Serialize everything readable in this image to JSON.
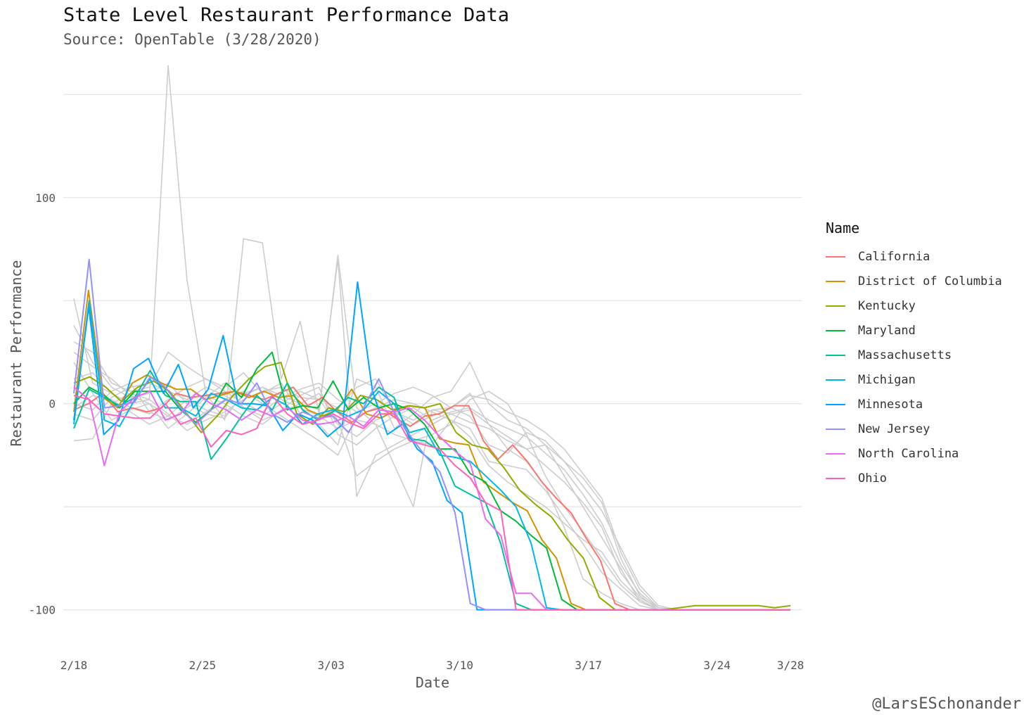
{
  "chart_data": {
    "type": "line",
    "title": "State Level Restaurant Performance Data",
    "subtitle": "Source: OpenTable (3/28/2020)",
    "xlabel": "Date",
    "ylabel": "Restaurant Performance",
    "x_start": "2/18",
    "x_end": "3/28",
    "ylim": [
      -109,
      160
    ],
    "yticks": [
      100,
      0,
      -100
    ],
    "ytick_labels": [
      "100",
      "0",
      "-100"
    ],
    "ygrid": [
      150,
      100,
      50,
      0,
      -50,
      -100
    ],
    "xticks": [
      {
        "label": "2/18",
        "day": 0
      },
      {
        "label": "2/25",
        "day": 7
      },
      {
        "label": "3/03",
        "day": 14
      },
      {
        "label": "3/10",
        "day": 21
      },
      {
        "label": "3/17",
        "day": 28
      },
      {
        "label": "3/24",
        "day": 35
      },
      {
        "label": "3/28",
        "day": 39
      }
    ],
    "legend_title": "Name",
    "series": [
      {
        "name": "California",
        "color": "#F8766D",
        "values": [
          -3,
          0,
          5,
          -4,
          -2,
          -4,
          -2,
          5,
          3,
          4,
          5,
          6,
          4,
          2,
          5,
          8,
          -1,
          3,
          -4,
          -9,
          -4,
          -2,
          -7,
          -11,
          -6,
          -5,
          -1,
          -1,
          -18,
          -27,
          -20,
          -28,
          -38,
          -46,
          -53,
          -65,
          -76,
          -97,
          -100,
          -100,
          -100,
          -100,
          -100,
          -100,
          -100,
          -100,
          -100,
          -100,
          -100,
          -100
        ]
      },
      {
        "name": "District of Columbia",
        "color": "#D39200",
        "values": [
          -4,
          55,
          3,
          -2,
          10,
          14,
          10,
          7,
          7,
          2,
          4,
          6,
          3,
          6,
          3,
          4,
          -3,
          -6,
          -3,
          7,
          -5,
          -7,
          -3,
          -1,
          -2,
          -17,
          -19,
          -20,
          -38,
          -43,
          -48,
          -52,
          -66,
          -75,
          -97,
          -100,
          -100,
          -100,
          -100,
          -100,
          -100,
          -100,
          -100,
          -100,
          -100,
          -100,
          -100,
          -100,
          -100,
          -100
        ]
      },
      {
        "name": "Kentucky",
        "color": "#93AA00",
        "values": [
          10,
          13,
          8,
          1,
          8,
          11,
          6,
          -4,
          -14,
          -6,
          4,
          12,
          18,
          20,
          -5,
          -10,
          -2,
          -4,
          4,
          2,
          -3,
          -1,
          -2,
          0,
          -14,
          -20,
          -22,
          -31,
          -42,
          -49,
          -55,
          -66,
          -75,
          -94,
          -100,
          -100,
          -100,
          -100,
          -99,
          -98,
          -98,
          -98,
          -98,
          -98,
          -99,
          -98
        ]
      },
      {
        "name": "Maryland",
        "color": "#00BA38",
        "values": [
          0,
          8,
          4,
          -2,
          6,
          6,
          6,
          -3,
          -9,
          -3,
          10,
          3,
          17,
          25,
          -3,
          -1,
          -2,
          11,
          -3,
          3,
          -2,
          0,
          -3,
          -10,
          -22,
          -22,
          -34,
          -38,
          -52,
          -57,
          -64,
          -70,
          -95,
          -100,
          -100,
          -100,
          -100,
          -100,
          -100,
          -100,
          -100,
          -100,
          -100,
          -100,
          -100,
          -100,
          -100,
          -100
        ]
      },
      {
        "name": "Massachusetts",
        "color": "#00C19F",
        "values": [
          -12,
          7,
          3,
          -1,
          3,
          16,
          4,
          1,
          1,
          -27,
          -17,
          -6,
          4,
          -3,
          10,
          -3,
          -8,
          -4,
          3,
          0,
          8,
          3,
          -17,
          -18,
          -23,
          -40,
          -44,
          -48,
          -68,
          -97,
          -100,
          -100,
          -100,
          -100,
          -100,
          -100,
          -100,
          -100,
          -100,
          -100,
          -100,
          -100,
          -100,
          -100,
          -100,
          -100,
          -100,
          -100
        ]
      },
      {
        "name": "Michigan",
        "color": "#00B9E3",
        "values": [
          -10,
          50,
          -8,
          -11,
          2,
          12,
          -2,
          -2,
          -6,
          5,
          2,
          -2,
          -3,
          3,
          -1,
          -10,
          -5,
          -3,
          -6,
          -3,
          6,
          0,
          -14,
          -12,
          -25,
          -26,
          -28,
          -35,
          -42,
          -50,
          -68,
          -99,
          -100,
          -100,
          -100,
          -100,
          -100,
          -100,
          -100,
          -100,
          -100,
          -100,
          -100,
          -100,
          -100,
          -100,
          -100,
          -100
        ]
      },
      {
        "name": "Minnesota",
        "color": "#00A5FF",
        "values": [
          -8,
          47,
          -15,
          -8,
          17,
          22,
          5,
          19,
          -2,
          7,
          33,
          0,
          0,
          -1,
          -13,
          -5,
          -8,
          -16,
          -10,
          59,
          6,
          -15,
          -10,
          -22,
          -28,
          -47,
          -53,
          -100,
          -100,
          -100,
          -100,
          -100,
          -100,
          -100,
          -100,
          -100,
          -100,
          -100,
          -100,
          -100,
          -100,
          -100,
          -100,
          -100,
          -100,
          -100,
          -100,
          -100,
          -100
        ]
      },
      {
        "name": "New Jersey",
        "color": "#9590FF",
        "values": [
          5,
          70,
          -2,
          -1,
          1,
          13,
          8,
          -2,
          -10,
          -3,
          2,
          0,
          10,
          -5,
          -9,
          -4,
          -7,
          -6,
          -14,
          -2,
          12,
          -4,
          -15,
          -25,
          -33,
          -53,
          -97,
          -100,
          -100,
          -100,
          -100,
          -100,
          -100,
          -100,
          -100,
          -100,
          -100,
          -100,
          -100,
          -100,
          -100,
          -100,
          -100,
          -100,
          -100,
          -100,
          -100,
          -100
        ]
      },
      {
        "name": "North Carolina",
        "color": "#E76BF3",
        "values": [
          8,
          2,
          -30,
          -4,
          3,
          6,
          -8,
          -5,
          5,
          0,
          -3,
          -8,
          -3,
          -6,
          -2,
          -8,
          -10,
          -9,
          -6,
          -11,
          -3,
          -4,
          -2,
          -8,
          -16,
          -23,
          -29,
          -56,
          -64,
          -92,
          -92,
          -100,
          -100,
          -100,
          -100,
          -100,
          -100,
          -100,
          -100,
          -100,
          -100,
          -100,
          -100,
          -100,
          -100,
          -100,
          -100,
          -100
        ]
      },
      {
        "name": "Ohio",
        "color": "#FF62BC",
        "values": [
          4,
          2,
          -5,
          -6,
          -7,
          -7,
          0,
          -10,
          -7,
          -21,
          -13,
          -15,
          -12,
          4,
          -5,
          -10,
          -8,
          -5,
          -9,
          -12,
          -5,
          -5,
          -18,
          -20,
          -22,
          -30,
          -36,
          -48,
          -52,
          -100,
          -100,
          -100,
          -100,
          -100,
          -100,
          -100,
          -100,
          -100,
          -100,
          -100,
          -100,
          -100,
          -100,
          -100,
          -100,
          -100,
          -100,
          -100
        ]
      }
    ],
    "background_series_note": "grey lines = other states",
    "background_series": [
      [
        51,
        10,
        5,
        0,
        2,
        164,
        60,
        5,
        -8,
        80,
        78,
        12,
        40,
        -5,
        72,
        -2,
        -10,
        -30,
        -50,
        -3,
        -2,
        5,
        -10,
        -22,
        -28,
        -40,
        -60,
        -85,
        -92,
        -97,
        -100,
        -100,
        -100,
        -100,
        -100,
        -100,
        -100,
        -100,
        -100
      ],
      [
        38,
        20,
        8,
        3,
        5,
        10,
        0,
        -5,
        -7,
        5,
        8,
        4,
        0,
        -3,
        70,
        -45,
        -25,
        -20,
        -15,
        -10,
        -5,
        -3,
        -10,
        -16,
        -22,
        -20,
        -35,
        -50,
        -65,
        -80,
        -96,
        -100,
        -100,
        -100,
        -100,
        -100,
        -100,
        -100,
        -100
      ],
      [
        -18,
        -17,
        0,
        5,
        2,
        -5,
        -13,
        -8,
        -4,
        2,
        6,
        8,
        3,
        2,
        -2,
        8,
        12,
        -4,
        -8,
        -3,
        -5,
        -9,
        -12,
        -18,
        -22,
        -30,
        -38,
        -48,
        -60,
        -82,
        -94,
        -99,
        -100,
        -100,
        -100,
        -100,
        -100,
        -100,
        -100
      ],
      [
        30,
        25,
        10,
        6,
        8,
        25,
        18,
        12,
        8,
        15,
        5,
        10,
        -5,
        -10,
        -20,
        12,
        8,
        -12,
        -5,
        3,
        6,
        20,
        0,
        -8,
        -12,
        -20,
        -28,
        -40,
        -52,
        -70,
        -88,
        -98,
        -100,
        -100,
        -100,
        -100,
        -100,
        -100,
        -100
      ],
      [
        20,
        5,
        -8,
        -3,
        0,
        -12,
        -5,
        3,
        10,
        -2,
        -8,
        -4,
        0,
        5,
        -8,
        -35,
        -28,
        -22,
        -18,
        -15,
        -10,
        2,
        6,
        0,
        -15,
        -35,
        -50,
        -62,
        -75,
        -88,
        -96,
        -100,
        -100,
        -100,
        -100,
        -100,
        -100,
        -100,
        -100
      ],
      [
        -5,
        -8,
        3,
        8,
        10,
        6,
        2,
        -3,
        -6,
        4,
        8,
        2,
        -2,
        -6,
        -12,
        -8,
        -10,
        -15,
        -18,
        -20,
        -8,
        -12,
        -28,
        -30,
        -32,
        -42,
        -55,
        -68,
        -82,
        -90,
        -98,
        -100,
        -100,
        -100,
        -100,
        -100,
        -100,
        -100,
        -100
      ],
      [
        12,
        15,
        5,
        -2,
        -5,
        2,
        8,
        12,
        6,
        0,
        -4,
        3,
        7,
        10,
        2,
        -4,
        0,
        5,
        8,
        4,
        -2,
        -6,
        -20,
        -24,
        -14,
        -18,
        -28,
        -36,
        -48,
        -75,
        -93,
        -100,
        -100,
        -100,
        -100,
        -100,
        -100,
        -100,
        -100
      ],
      [
        0,
        -3,
        6,
        10,
        -4,
        -8,
        -2,
        4,
        0,
        -6,
        -10,
        -3,
        4,
        8,
        -15,
        -20,
        -12,
        -6,
        -2,
        -8,
        -4,
        -2,
        -8,
        -12,
        -16,
        -24,
        -32,
        -44,
        -58,
        -78,
        -92,
        -99,
        -100,
        -100,
        -100,
        -100,
        -100,
        -100,
        -100
      ],
      [
        25,
        18,
        12,
        4,
        0,
        -6,
        -10,
        -4,
        2,
        6,
        0,
        -6,
        -12,
        -18,
        -25,
        -6,
        -2,
        2,
        0,
        -4,
        -8,
        -16,
        -30,
        -38,
        -44,
        -50,
        -58,
        -66,
        -72,
        -86,
        -95,
        -100,
        -100,
        -100,
        -100,
        -100,
        -100,
        -100,
        -100
      ],
      [
        -2,
        4,
        2,
        -4,
        -10,
        -6,
        2,
        8,
        4,
        -2,
        -6,
        0,
        6,
        2,
        -10,
        -16,
        -8,
        -4,
        -10,
        -6,
        -2,
        4,
        2,
        -4,
        -8,
        -14,
        -22,
        -34,
        -46,
        -72,
        -90,
        -99,
        -100,
        -100,
        -100,
        -100,
        -100,
        -100,
        -100
      ]
    ]
  },
  "credit": "@LarsESchonander"
}
